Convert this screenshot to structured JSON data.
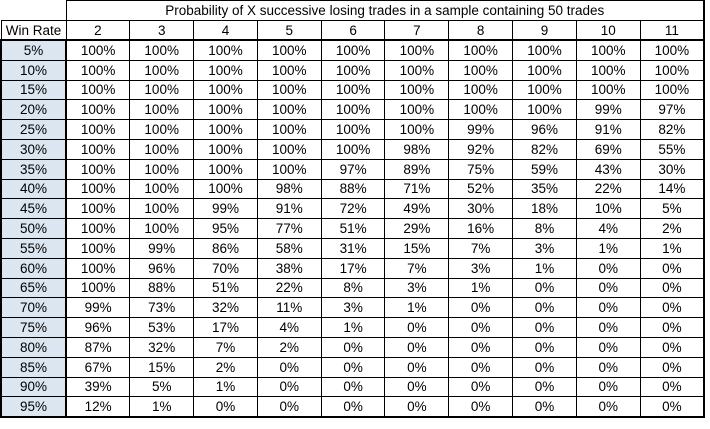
{
  "chart_data": {
    "type": "table",
    "title": "Probability of X successive losing trades in a sample containing 50 trades",
    "row_header_label": "Win Rate",
    "column_headers": [
      "2",
      "3",
      "4",
      "5",
      "6",
      "7",
      "8",
      "9",
      "10",
      "11"
    ],
    "rows": [
      {
        "win_rate": "5%",
        "values": [
          "100%",
          "100%",
          "100%",
          "100%",
          "100%",
          "100%",
          "100%",
          "100%",
          "100%",
          "100%"
        ]
      },
      {
        "win_rate": "10%",
        "values": [
          "100%",
          "100%",
          "100%",
          "100%",
          "100%",
          "100%",
          "100%",
          "100%",
          "100%",
          "100%"
        ]
      },
      {
        "win_rate": "15%",
        "values": [
          "100%",
          "100%",
          "100%",
          "100%",
          "100%",
          "100%",
          "100%",
          "100%",
          "100%",
          "100%"
        ]
      },
      {
        "win_rate": "20%",
        "values": [
          "100%",
          "100%",
          "100%",
          "100%",
          "100%",
          "100%",
          "100%",
          "100%",
          "99%",
          "97%"
        ]
      },
      {
        "win_rate": "25%",
        "values": [
          "100%",
          "100%",
          "100%",
          "100%",
          "100%",
          "100%",
          "99%",
          "96%",
          "91%",
          "82%"
        ]
      },
      {
        "win_rate": "30%",
        "values": [
          "100%",
          "100%",
          "100%",
          "100%",
          "100%",
          "98%",
          "92%",
          "82%",
          "69%",
          "55%"
        ]
      },
      {
        "win_rate": "35%",
        "values": [
          "100%",
          "100%",
          "100%",
          "100%",
          "97%",
          "89%",
          "75%",
          "59%",
          "43%",
          "30%"
        ]
      },
      {
        "win_rate": "40%",
        "values": [
          "100%",
          "100%",
          "100%",
          "98%",
          "88%",
          "71%",
          "52%",
          "35%",
          "22%",
          "14%"
        ]
      },
      {
        "win_rate": "45%",
        "values": [
          "100%",
          "100%",
          "99%",
          "91%",
          "72%",
          "49%",
          "30%",
          "18%",
          "10%",
          "5%"
        ]
      },
      {
        "win_rate": "50%",
        "values": [
          "100%",
          "100%",
          "95%",
          "77%",
          "51%",
          "29%",
          "16%",
          "8%",
          "4%",
          "2%"
        ]
      },
      {
        "win_rate": "55%",
        "values": [
          "100%",
          "99%",
          "86%",
          "58%",
          "31%",
          "15%",
          "7%",
          "3%",
          "1%",
          "1%"
        ]
      },
      {
        "win_rate": "60%",
        "values": [
          "100%",
          "96%",
          "70%",
          "38%",
          "17%",
          "7%",
          "3%",
          "1%",
          "0%",
          "0%"
        ]
      },
      {
        "win_rate": "65%",
        "values": [
          "100%",
          "88%",
          "51%",
          "22%",
          "8%",
          "3%",
          "1%",
          "0%",
          "0%",
          "0%"
        ]
      },
      {
        "win_rate": "70%",
        "values": [
          "99%",
          "73%",
          "32%",
          "11%",
          "3%",
          "1%",
          "0%",
          "0%",
          "0%",
          "0%"
        ]
      },
      {
        "win_rate": "75%",
        "values": [
          "96%",
          "53%",
          "17%",
          "4%",
          "1%",
          "0%",
          "0%",
          "0%",
          "0%",
          "0%"
        ]
      },
      {
        "win_rate": "80%",
        "values": [
          "87%",
          "32%",
          "7%",
          "2%",
          "0%",
          "0%",
          "0%",
          "0%",
          "0%",
          "0%"
        ]
      },
      {
        "win_rate": "85%",
        "values": [
          "67%",
          "15%",
          "2%",
          "0%",
          "0%",
          "0%",
          "0%",
          "0%",
          "0%",
          "0%"
        ]
      },
      {
        "win_rate": "90%",
        "values": [
          "39%",
          "5%",
          "1%",
          "0%",
          "0%",
          "0%",
          "0%",
          "0%",
          "0%",
          "0%"
        ]
      },
      {
        "win_rate": "95%",
        "values": [
          "12%",
          "1%",
          "0%",
          "0%",
          "0%",
          "0%",
          "0%",
          "0%",
          "0%",
          "0%"
        ]
      }
    ]
  },
  "colors": {
    "win_rate_column_bg": "#DCE6F1",
    "border": "#000000",
    "background": "#FFFFFF",
    "text": "#000000"
  }
}
